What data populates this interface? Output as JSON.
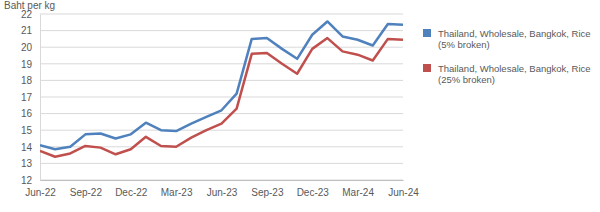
{
  "chart_data": {
    "type": "line",
    "y_label": "Baht per kg",
    "categories": [
      "Jun-22",
      null,
      null,
      "Sep-22",
      null,
      null,
      "Dec-22",
      null,
      null,
      "Mar-23",
      null,
      null,
      "Jun-23",
      null,
      null,
      "Sep-23",
      null,
      null,
      "Dec-23",
      null,
      null,
      "Mar-24",
      null,
      null,
      "Jun-24"
    ],
    "series": [
      {
        "name": "Thailand, Wholesale, Bangkok, Rice (5% broken)",
        "color": "#4f81bd",
        "values": [
          14.1,
          13.85,
          14.0,
          14.75,
          14.8,
          14.5,
          14.75,
          15.45,
          15.0,
          14.95,
          15.4,
          15.8,
          16.2,
          17.2,
          20.5,
          20.55,
          19.9,
          19.3,
          20.75,
          21.55,
          20.65,
          20.45,
          20.1,
          21.4,
          21.35
        ]
      },
      {
        "name": "Thailand, Wholesale, Bangkok, Rice (25% broken)",
        "color": "#c0504d",
        "values": [
          13.75,
          13.4,
          13.6,
          14.05,
          13.95,
          13.55,
          13.85,
          14.6,
          14.05,
          14.0,
          14.55,
          15.0,
          15.4,
          16.3,
          19.6,
          19.65,
          19.0,
          18.4,
          19.9,
          20.55,
          19.75,
          19.55,
          19.2,
          20.5,
          20.45
        ]
      }
    ],
    "ylim": [
      12,
      22
    ],
    "yticks": [
      12,
      13,
      14,
      15,
      16,
      17,
      18,
      19,
      20,
      21,
      22
    ],
    "grid": true,
    "legend": "right"
  }
}
